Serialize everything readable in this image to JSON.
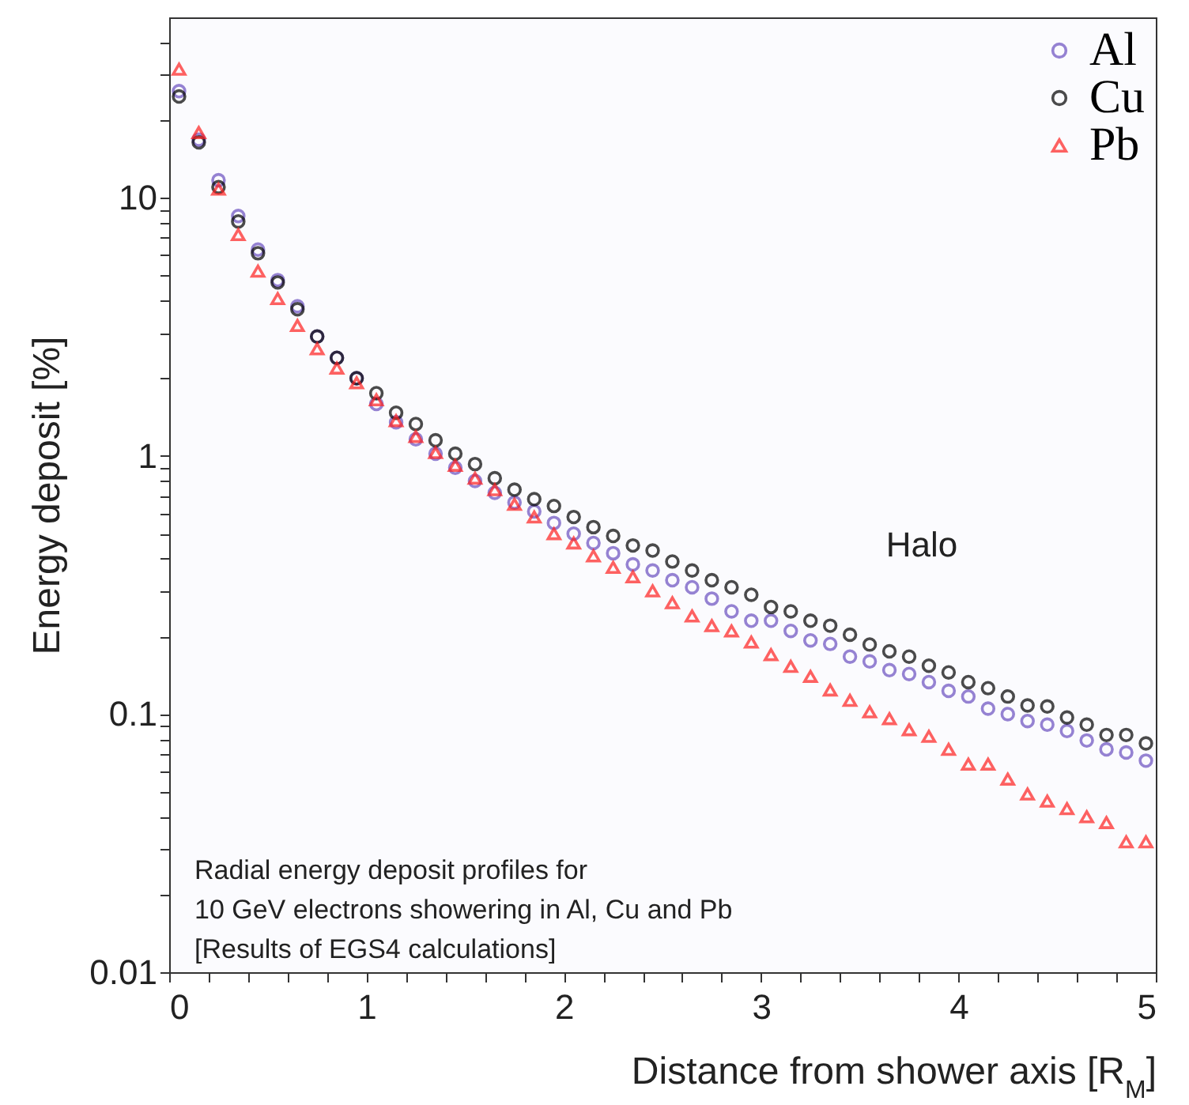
{
  "chart_data": {
    "type": "scatter",
    "xlabel": "Distance from shower axis [R$_{M}$]",
    "ylabel": "Energy deposit [%]",
    "x": [
      0.05,
      0.15,
      0.25,
      0.35,
      0.45,
      0.55,
      0.65,
      0.75,
      0.85,
      0.95,
      1.05,
      1.15,
      1.25,
      1.35,
      1.45,
      1.55,
      1.65,
      1.75,
      1.85,
      1.95,
      2.05,
      2.15,
      2.25,
      2.35,
      2.45,
      2.55,
      2.65,
      2.75,
      2.85,
      2.95,
      3.05,
      3.15,
      3.25,
      3.35,
      3.45,
      3.55,
      3.65,
      3.75,
      3.85,
      3.95,
      4.05,
      4.15,
      4.25,
      4.35,
      4.45,
      4.55,
      4.65,
      4.75,
      4.85,
      4.95
    ],
    "series": [
      {
        "name": "Al",
        "color": "#6a4fc0",
        "marker": "circle",
        "values": [
          25.9,
          16.8,
          11.7,
          8.5,
          6.3,
          4.8,
          3.8,
          2.9,
          2.4,
          2.0,
          1.59,
          1.35,
          1.16,
          1.02,
          0.9,
          0.8,
          0.72,
          0.66,
          0.61,
          0.55,
          0.5,
          0.46,
          0.42,
          0.38,
          0.36,
          0.33,
          0.31,
          0.28,
          0.25,
          0.23,
          0.23,
          0.21,
          0.193,
          0.187,
          0.167,
          0.16,
          0.148,
          0.143,
          0.133,
          0.123,
          0.117,
          0.105,
          0.1,
          0.094,
          0.091,
          0.086,
          0.079,
          0.073,
          0.071,
          0.066
        ]
      },
      {
        "name": "Cu",
        "color": "#000000",
        "marker": "circle",
        "values": [
          24.7,
          16.4,
          11.0,
          8.1,
          6.1,
          4.7,
          3.7,
          2.9,
          2.4,
          2.0,
          1.75,
          1.47,
          1.33,
          1.15,
          1.02,
          0.93,
          0.82,
          0.74,
          0.68,
          0.64,
          0.58,
          0.53,
          0.49,
          0.45,
          0.43,
          0.39,
          0.36,
          0.33,
          0.31,
          0.29,
          0.26,
          0.25,
          0.23,
          0.22,
          0.203,
          0.186,
          0.175,
          0.167,
          0.154,
          0.145,
          0.133,
          0.126,
          0.117,
          0.108,
          0.107,
          0.097,
          0.091,
          0.083,
          0.083,
          0.077
        ]
      },
      {
        "name": "Pb",
        "color": "#ff2020",
        "marker": "triangle",
        "values": [
          31.5,
          17.9,
          10.8,
          7.2,
          5.2,
          4.07,
          3.2,
          2.6,
          2.19,
          1.92,
          1.65,
          1.37,
          1.19,
          1.03,
          0.92,
          0.82,
          0.74,
          0.65,
          0.58,
          0.5,
          0.46,
          0.41,
          0.37,
          0.34,
          0.3,
          0.27,
          0.24,
          0.22,
          0.21,
          0.19,
          0.17,
          0.153,
          0.14,
          0.124,
          0.113,
          0.102,
          0.096,
          0.087,
          0.082,
          0.073,
          0.064,
          0.064,
          0.056,
          0.049,
          0.046,
          0.043,
          0.04,
          0.038,
          0.032,
          0.032
        ]
      }
    ],
    "log": "y",
    "xlim": [
      0,
      5
    ],
    "ylim": [
      0.01,
      50
    ],
    "xticks": [
      0,
      {
        "value": 0.2,
        "label": null
      },
      {
        "value": 0.4,
        "label": null
      },
      {
        "value": 0.6,
        "label": null
      },
      {
        "value": 0.8,
        "label": null
      },
      1,
      {
        "value": 1.2,
        "label": null
      },
      {
        "value": 1.4,
        "label": null
      },
      {
        "value": 1.6,
        "label": null
      },
      {
        "value": 1.8,
        "label": null
      },
      2,
      {
        "value": 2.2,
        "label": null
      },
      {
        "value": 2.4,
        "label": null
      },
      {
        "value": 2.6,
        "label": null
      },
      {
        "value": 2.8,
        "label": null
      },
      3,
      {
        "value": 3.2,
        "label": null
      },
      {
        "value": 3.4,
        "label": null
      },
      {
        "value": 3.6,
        "label": null
      },
      {
        "value": 3.8,
        "label": null
      },
      4,
      {
        "value": 4.2,
        "label": null
      },
      {
        "value": 4.4,
        "label": null
      },
      {
        "value": 4.6,
        "label": null
      },
      {
        "value": 4.8,
        "label": null
      },
      5
    ],
    "yticks": [
      0.01,
      {
        "value": 0.02,
        "label": null
      },
      {
        "value": 0.03,
        "label": null
      },
      {
        "value": 0.04,
        "label": null
      },
      {
        "value": 0.05,
        "label": null
      },
      {
        "value": 0.06,
        "label": null
      },
      {
        "value": 0.07,
        "label": null
      },
      {
        "value": 0.08,
        "label": null
      },
      {
        "value": 0.09,
        "label": null
      },
      0.1,
      {
        "value": 0.2,
        "label": null
      },
      {
        "value": 0.3,
        "label": null
      },
      {
        "value": 0.4,
        "label": null
      },
      {
        "value": 0.5,
        "label": null
      },
      {
        "value": 0.6,
        "label": null
      },
      {
        "value": 0.7,
        "label": null
      },
      {
        "value": 0.8,
        "label": null
      },
      {
        "value": 0.9,
        "label": null
      },
      1,
      {
        "value": 2,
        "label": null
      },
      {
        "value": 3,
        "label": null
      },
      {
        "value": 4,
        "label": null
      },
      {
        "value": 5,
        "label": null
      },
      {
        "value": 6,
        "label": null
      },
      {
        "value": 7,
        "label": null
      },
      {
        "value": 8,
        "label": null
      },
      {
        "value": 9,
        "label": null
      },
      10,
      {
        "value": 20,
        "label": null
      },
      {
        "value": 30,
        "label": null
      },
      {
        "value": 40,
        "label": null
      }
    ],
    "grid": false,
    "legend": "top right",
    "annotations": [
      "Halo",
      "Radial energy deposit profiles for\n10 GeV electrons showering in Al, Cu and Pb\n[Results of EGS4 calculations]"
    ]
  }
}
